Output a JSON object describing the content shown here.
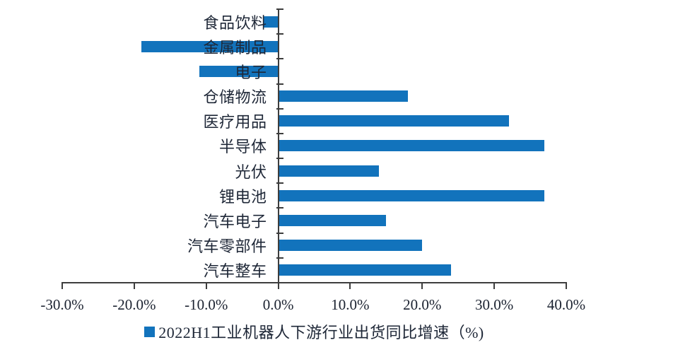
{
  "chart_data": {
    "type": "bar",
    "orientation": "horizontal",
    "title": "",
    "categories": [
      "食品饮料",
      "金属制品",
      "电子",
      "仓储物流",
      "医疗用品",
      "半导体",
      "光伏",
      "锂电池",
      "汽车电子",
      "汽车零部件",
      "汽车整车"
    ],
    "values": [
      -2,
      -19,
      -11,
      18,
      32,
      37,
      14,
      37,
      15,
      20,
      24
    ],
    "value_unit": "%",
    "xlim": [
      -30,
      40
    ],
    "x_ticks": [
      "-30.0%",
      "-20.0%",
      "-10.0%",
      "0.0%",
      "10.0%",
      "20.0%",
      "30.0%",
      "40.0%"
    ],
    "grid": false,
    "legend_position": "bottom",
    "legend": "2022H1工业机器人下游行业出货同比增速（%)",
    "bar_color": "#1273BC",
    "axis_color": "#3d3d3d"
  }
}
